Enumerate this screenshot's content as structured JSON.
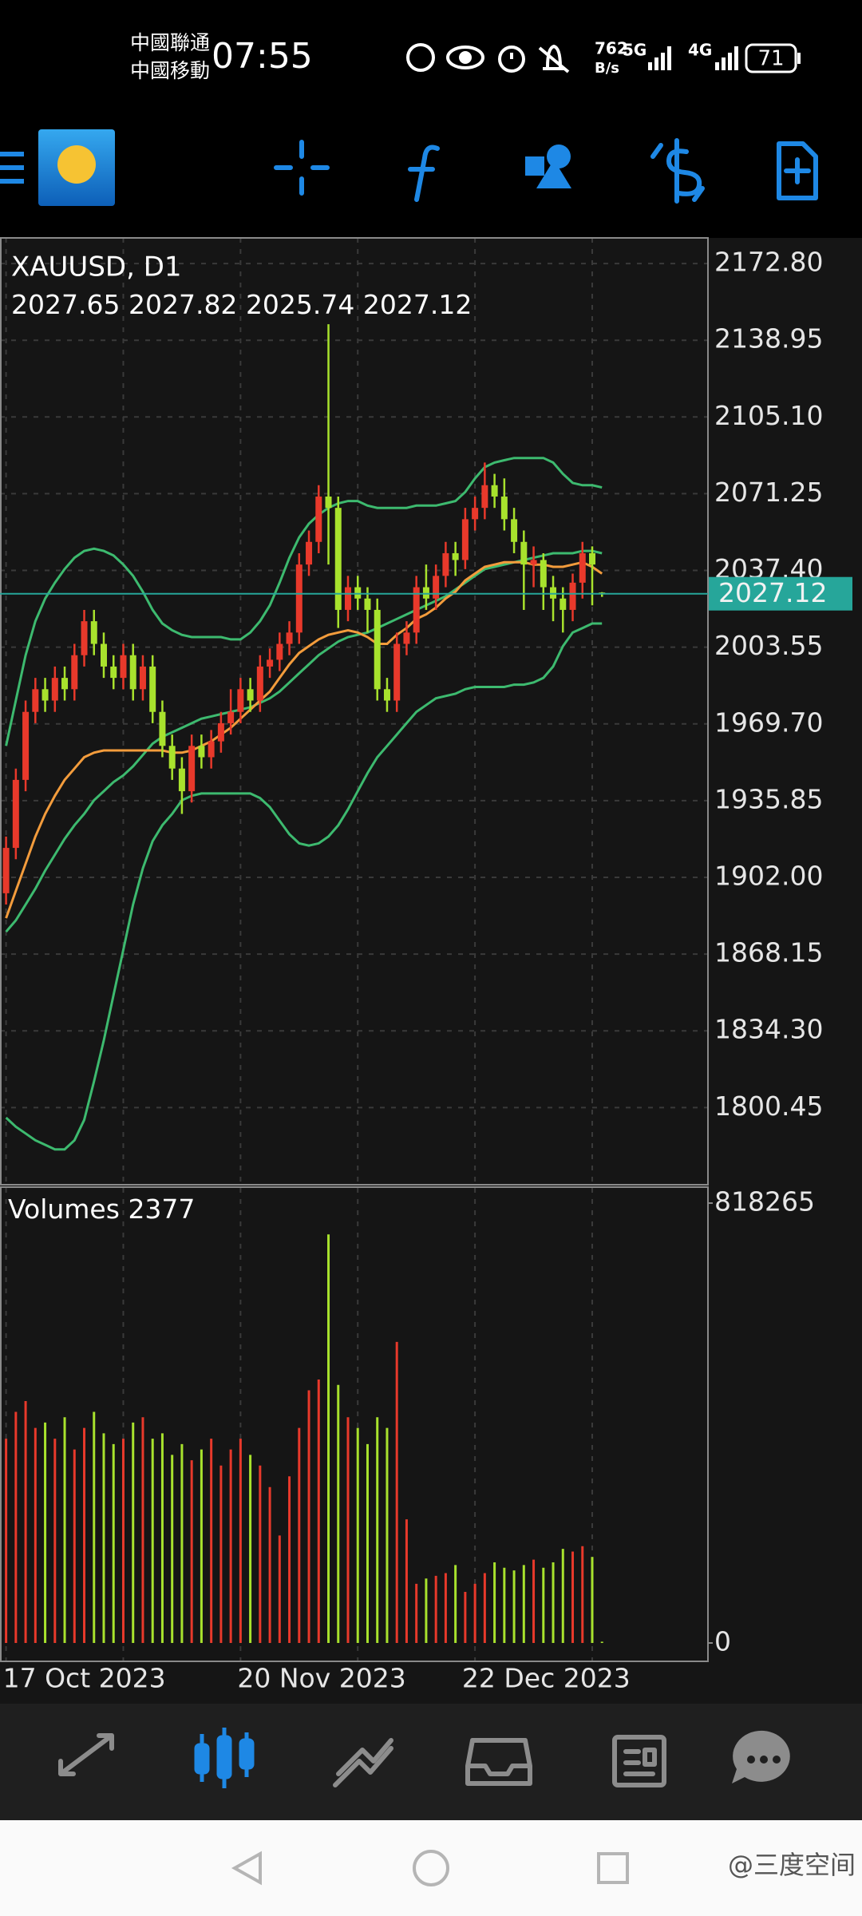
{
  "status_bar": {
    "carrier_1": "中國聯通",
    "carrier_2": "中國移動",
    "time": "07:55",
    "speed": "762",
    "speed_unit": "B/s",
    "network_1": "5G",
    "network_2": "4G",
    "battery": "71"
  },
  "chart_data": {
    "type": "candlestick",
    "title": "XAUUSD, D1",
    "categories": [
      "17 Oct 2023",
      null,
      null,
      null,
      null,
      null,
      null,
      null,
      null,
      null,
      null,
      null,
      null,
      null,
      null,
      null,
      null,
      null,
      null,
      null,
      null,
      null,
      null,
      null,
      "20 Nov 2023",
      null,
      null,
      null,
      null,
      null,
      null,
      null,
      null,
      null,
      null,
      null,
      null,
      null,
      null,
      null,
      null,
      null,
      null,
      null,
      null,
      null,
      null,
      "22 Dec 2023",
      null,
      null,
      null,
      null,
      null,
      null,
      null,
      null,
      null,
      null,
      null,
      null,
      null,
      null
    ],
    "open": [
      1895,
      1915,
      1945,
      1975,
      1985,
      1980,
      1990,
      1985,
      2000,
      2015,
      2005,
      1995,
      1990,
      2000,
      1985,
      1995,
      1975,
      1960,
      1950,
      1940,
      1960,
      1955,
      1962,
      1970,
      1975,
      1985,
      1980,
      1995,
      1998,
      2005,
      2010,
      2040,
      2050,
      2070,
      2065,
      2020,
      2030,
      2025,
      2020,
      1985,
      1980,
      2005,
      2010,
      2030,
      2025,
      2035,
      2045,
      2042,
      2060,
      2065,
      2075,
      2070,
      2060,
      2050,
      2040,
      2042,
      2030,
      2025,
      2020,
      2032,
      2045,
      2027.65
    ],
    "high": [
      1920,
      1950,
      1980,
      1990,
      1990,
      1995,
      1995,
      2005,
      2020,
      2020,
      2010,
      2000,
      2005,
      2005,
      2000,
      2000,
      1980,
      1965,
      1955,
      1965,
      1965,
      1967,
      1975,
      1985,
      1990,
      1990,
      2000,
      2003,
      2010,
      2015,
      2045,
      2055,
      2075,
      2146,
      2070,
      2035,
      2035,
      2030,
      2025,
      1990,
      2010,
      2015,
      2035,
      2040,
      2040,
      2050,
      2050,
      2065,
      2070,
      2085,
      2080,
      2078,
      2065,
      2055,
      2048,
      2045,
      2035,
      2030,
      2036,
      2050,
      2048,
      2027.82
    ],
    "low": [
      1890,
      1910,
      1940,
      1970,
      1975,
      1975,
      1980,
      1980,
      1995,
      2000,
      1990,
      1985,
      1985,
      1980,
      1980,
      1970,
      1955,
      1945,
      1930,
      1935,
      1950,
      1950,
      1957,
      1965,
      1970,
      1975,
      1975,
      1990,
      1993,
      2000,
      2005,
      2035,
      2045,
      2040,
      2012,
      2015,
      2020,
      2010,
      1980,
      1975,
      1975,
      2000,
      2005,
      2020,
      2020,
      2030,
      2035,
      2038,
      2055,
      2060,
      2065,
      2055,
      2045,
      2020,
      2030,
      2020,
      2015,
      2010,
      2015,
      2025,
      2022,
      2025.74
    ],
    "close": [
      1915,
      1945,
      1975,
      1985,
      1980,
      1990,
      1985,
      2000,
      2015,
      2005,
      1995,
      1990,
      2000,
      1985,
      1995,
      1975,
      1960,
      1950,
      1940,
      1960,
      1955,
      1962,
      1970,
      1975,
      1985,
      1980,
      1995,
      1998,
      2005,
      2010,
      2040,
      2050,
      2070,
      2065,
      2020,
      2030,
      2025,
      2020,
      1985,
      1980,
      2005,
      2010,
      2030,
      2025,
      2035,
      2045,
      2042,
      2060,
      2065,
      2075,
      2070,
      2060,
      2050,
      2040,
      2042,
      2030,
      2025,
      2020,
      2032,
      2045,
      2040,
      2027.12
    ],
    "up_color": "#e8392b",
    "down_color": "#a8e22d",
    "ylim": [
      1766.4,
      2184.1
    ],
    "yticks": [
      {
        "value": 2172.8,
        "label": "2172.80"
      },
      {
        "value": 2138.95,
        "label": "2138.95"
      },
      {
        "value": 2105.1,
        "label": "2105.10"
      },
      {
        "value": 2071.25,
        "label": "2071.25"
      },
      {
        "value": 2037.4,
        "label": "2037.40"
      },
      {
        "value": 2003.55,
        "label": "2003.55"
      },
      {
        "value": 1969.7,
        "label": "1969.70"
      },
      {
        "value": 1935.85,
        "label": "1935.85"
      },
      {
        "value": 1902,
        "label": "1902.00"
      },
      {
        "value": 1868.15,
        "label": "1868.15"
      },
      {
        "value": 1834.3,
        "label": "1834.30"
      },
      {
        "value": 1800.45,
        "label": "1800.45"
      }
    ],
    "grid": true,
    "price_line_color": "#26a69a",
    "lines": [
      {
        "color": "#3dba6f",
        "values": [
          1960,
          1980,
          2000,
          2015,
          2025,
          2032,
          2038,
          2043,
          2046,
          2047,
          2046,
          2044,
          2040,
          2035,
          2028,
          2020,
          2014,
          2011,
          2009,
          2008,
          2008,
          2008,
          2008,
          2007,
          2007,
          2010,
          2015,
          2022,
          2032,
          2043,
          2052,
          2058,
          2062,
          2065,
          2067,
          2068,
          2068,
          2066,
          2065,
          2065,
          2065,
          2065,
          2066,
          2066,
          2066,
          2067,
          2068,
          2072,
          2078,
          2083,
          2085,
          2086,
          2087,
          2087,
          2087,
          2087,
          2085,
          2080,
          2076,
          2075,
          2075,
          2074
        ]
      },
      {
        "color": "#3dba6f",
        "values": [
          1878,
          1883,
          1890,
          1897,
          1905,
          1912,
          1919,
          1925,
          1930,
          1936,
          1940,
          1944,
          1947,
          1951,
          1956,
          1961,
          1964,
          1966,
          1968,
          1970,
          1972,
          1973,
          1974,
          1975,
          1976,
          1977,
          1979,
          1981,
          1984,
          1988,
          1992,
          1996,
          2000,
          2003,
          2006,
          2008,
          2009,
          2010,
          2012,
          2014,
          2016,
          2018,
          2020,
          2022,
          2024,
          2026,
          2029,
          2032,
          2035,
          2038,
          2039,
          2040,
          2041,
          2042,
          2043,
          2044,
          2045,
          2045,
          2045,
          2046,
          2046,
          2045
        ]
      },
      {
        "color": "#3dba6f",
        "values": [
          1796,
          1792,
          1789,
          1786,
          1784,
          1782,
          1782,
          1786,
          1795,
          1812,
          1830,
          1850,
          1870,
          1890,
          1906,
          1918,
          1925,
          1930,
          1936,
          1938,
          1939,
          1939,
          1939,
          1939,
          1939,
          1939,
          1937,
          1933,
          1927,
          1921,
          1917,
          1916,
          1917,
          1920,
          1925,
          1932,
          1940,
          1948,
          1955,
          1960,
          1965,
          1970,
          1975,
          1978,
          1981,
          1982,
          1983,
          1985,
          1986,
          1986,
          1986,
          1986,
          1987,
          1987,
          1988,
          1990,
          1995,
          2004,
          2010,
          2012,
          2014,
          2014
        ]
      },
      {
        "color": "#f39c3c",
        "values": [
          1884,
          1896,
          1908,
          1920,
          1930,
          1938,
          1945,
          1950,
          1955,
          1957,
          1958,
          1958,
          1958,
          1958,
          1958,
          1958,
          1958,
          1957,
          1957,
          1958,
          1960,
          1962,
          1965,
          1968,
          1972,
          1976,
          1980,
          1984,
          1990,
          1996,
          2001,
          2004,
          2007,
          2009,
          2010,
          2011,
          2010,
          2008,
          2005,
          2005,
          2009,
          2012,
          2016,
          2018,
          2021,
          2025,
          2028,
          2033,
          2036,
          2039,
          2040,
          2041,
          2041,
          2041,
          2040,
          2040,
          2039,
          2039,
          2040,
          2041,
          2039,
          2036
        ]
      }
    ],
    "volume": {
      "label": "Volumes",
      "values": [
        380000,
        430000,
        450000,
        400000,
        410000,
        380000,
        420000,
        360000,
        400000,
        430000,
        390000,
        370000,
        380000,
        410000,
        420000,
        380000,
        390000,
        350000,
        370000,
        340000,
        360000,
        380000,
        330000,
        360000,
        380000,
        350000,
        330000,
        290000,
        200000,
        310000,
        400000,
        470000,
        490000,
        760000,
        480000,
        420000,
        400000,
        370000,
        420000,
        400000,
        560000,
        230000,
        110000,
        120000,
        125000,
        130000,
        145000,
        95000,
        110000,
        130000,
        150000,
        140000,
        135000,
        145000,
        155000,
        140000,
        150000,
        175000,
        170000,
        180000,
        160000,
        2377
      ],
      "ylim": [
        -34150,
        848000
      ],
      "yticks": [
        0,
        818265
      ]
    }
  },
  "watermark": "@三度空间"
}
